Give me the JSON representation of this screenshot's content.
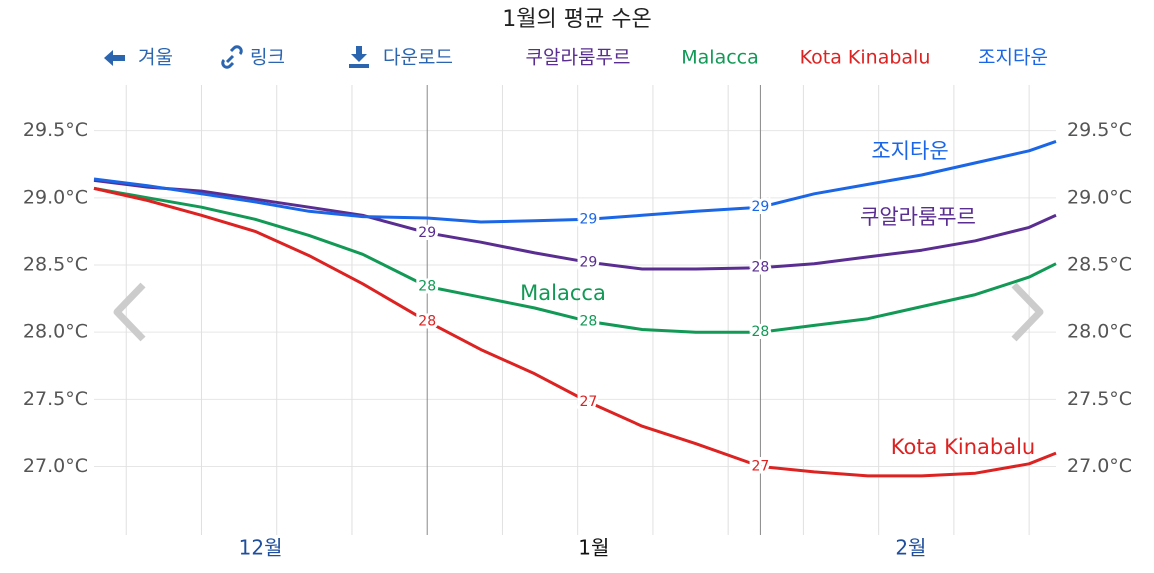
{
  "toolbar": {
    "back": "겨울",
    "link": "링크",
    "download": "다운로드"
  },
  "chart_data": {
    "type": "line",
    "title": "1월의 평균 수온",
    "x": [
      0,
      5,
      10,
      15,
      20,
      25,
      31,
      36,
      41,
      46,
      51,
      56,
      62,
      67,
      72,
      77,
      82,
      87,
      89.5
    ],
    "xlim": [
      0,
      89.5
    ],
    "xticks": [
      {
        "value": 15.5,
        "label": "12월"
      },
      {
        "value": 46.5,
        "label": "1월"
      },
      {
        "value": 76,
        "label": "2월"
      }
    ],
    "current_month": 1,
    "xgrid": [
      3,
      10,
      17,
      24,
      38,
      45,
      52,
      59,
      66,
      73,
      80,
      87
    ],
    "month_boundaries": [
      31,
      62
    ],
    "ylim": [
      26.49,
      29.84
    ],
    "yticks": [
      {
        "value": 27.0,
        "label": "27.0°C"
      },
      {
        "value": 27.5,
        "label": "27.5°C"
      },
      {
        "value": 28.0,
        "label": "28.0°C"
      },
      {
        "value": 28.5,
        "label": "28.5°C"
      },
      {
        "value": 29.0,
        "label": "29.0°C"
      },
      {
        "value": 29.5,
        "label": "29.5°C"
      }
    ],
    "grid": true,
    "series": [
      {
        "name": "쿠알라룸푸르",
        "color": "#5a2d91",
        "values": [
          29.13,
          29.08,
          29.05,
          28.99,
          28.93,
          28.87,
          28.74,
          28.67,
          28.59,
          28.52,
          28.47,
          28.47,
          28.48,
          28.51,
          28.56,
          28.61,
          28.68,
          28.78,
          28.87
        ],
        "value_labels": [
          null,
          null,
          null,
          null,
          null,
          null,
          "29",
          null,
          null,
          "29",
          null,
          null,
          "28",
          null,
          null,
          null,
          null,
          null,
          null
        ]
      },
      {
        "name": "Malacca",
        "color": "#119955",
        "values": [
          29.07,
          29.0,
          28.93,
          28.84,
          28.72,
          28.58,
          28.34,
          28.26,
          28.18,
          28.08,
          28.02,
          28.0,
          28.0,
          28.05,
          28.1,
          28.19,
          28.28,
          28.41,
          28.51
        ],
        "value_labels": [
          null,
          null,
          null,
          null,
          null,
          null,
          "28",
          null,
          null,
          "28",
          null,
          null,
          "28",
          null,
          null,
          null,
          null,
          null,
          null
        ]
      },
      {
        "name": "Kota Kinabalu",
        "color": "#dd2222",
        "values": [
          29.07,
          28.98,
          28.87,
          28.75,
          28.57,
          28.36,
          28.08,
          27.87,
          27.69,
          27.48,
          27.3,
          27.17,
          27.0,
          26.96,
          26.93,
          26.93,
          26.95,
          27.02,
          27.1
        ],
        "value_labels": [
          null,
          null,
          null,
          null,
          null,
          null,
          "28",
          null,
          null,
          "27",
          null,
          null,
          "27",
          null,
          null,
          null,
          null,
          null,
          null
        ]
      },
      {
        "name": "조지타운",
        "color": "#1a66e6",
        "values": [
          29.14,
          29.09,
          29.03,
          28.97,
          28.9,
          28.86,
          28.85,
          28.82,
          28.83,
          28.84,
          28.87,
          28.9,
          28.93,
          29.03,
          29.1,
          29.17,
          29.26,
          29.35,
          29.42
        ],
        "value_labels": [
          null,
          null,
          null,
          null,
          null,
          null,
          null,
          null,
          null,
          "29",
          null,
          null,
          "29",
          null,
          null,
          null,
          null,
          null,
          null
        ]
      }
    ]
  }
}
